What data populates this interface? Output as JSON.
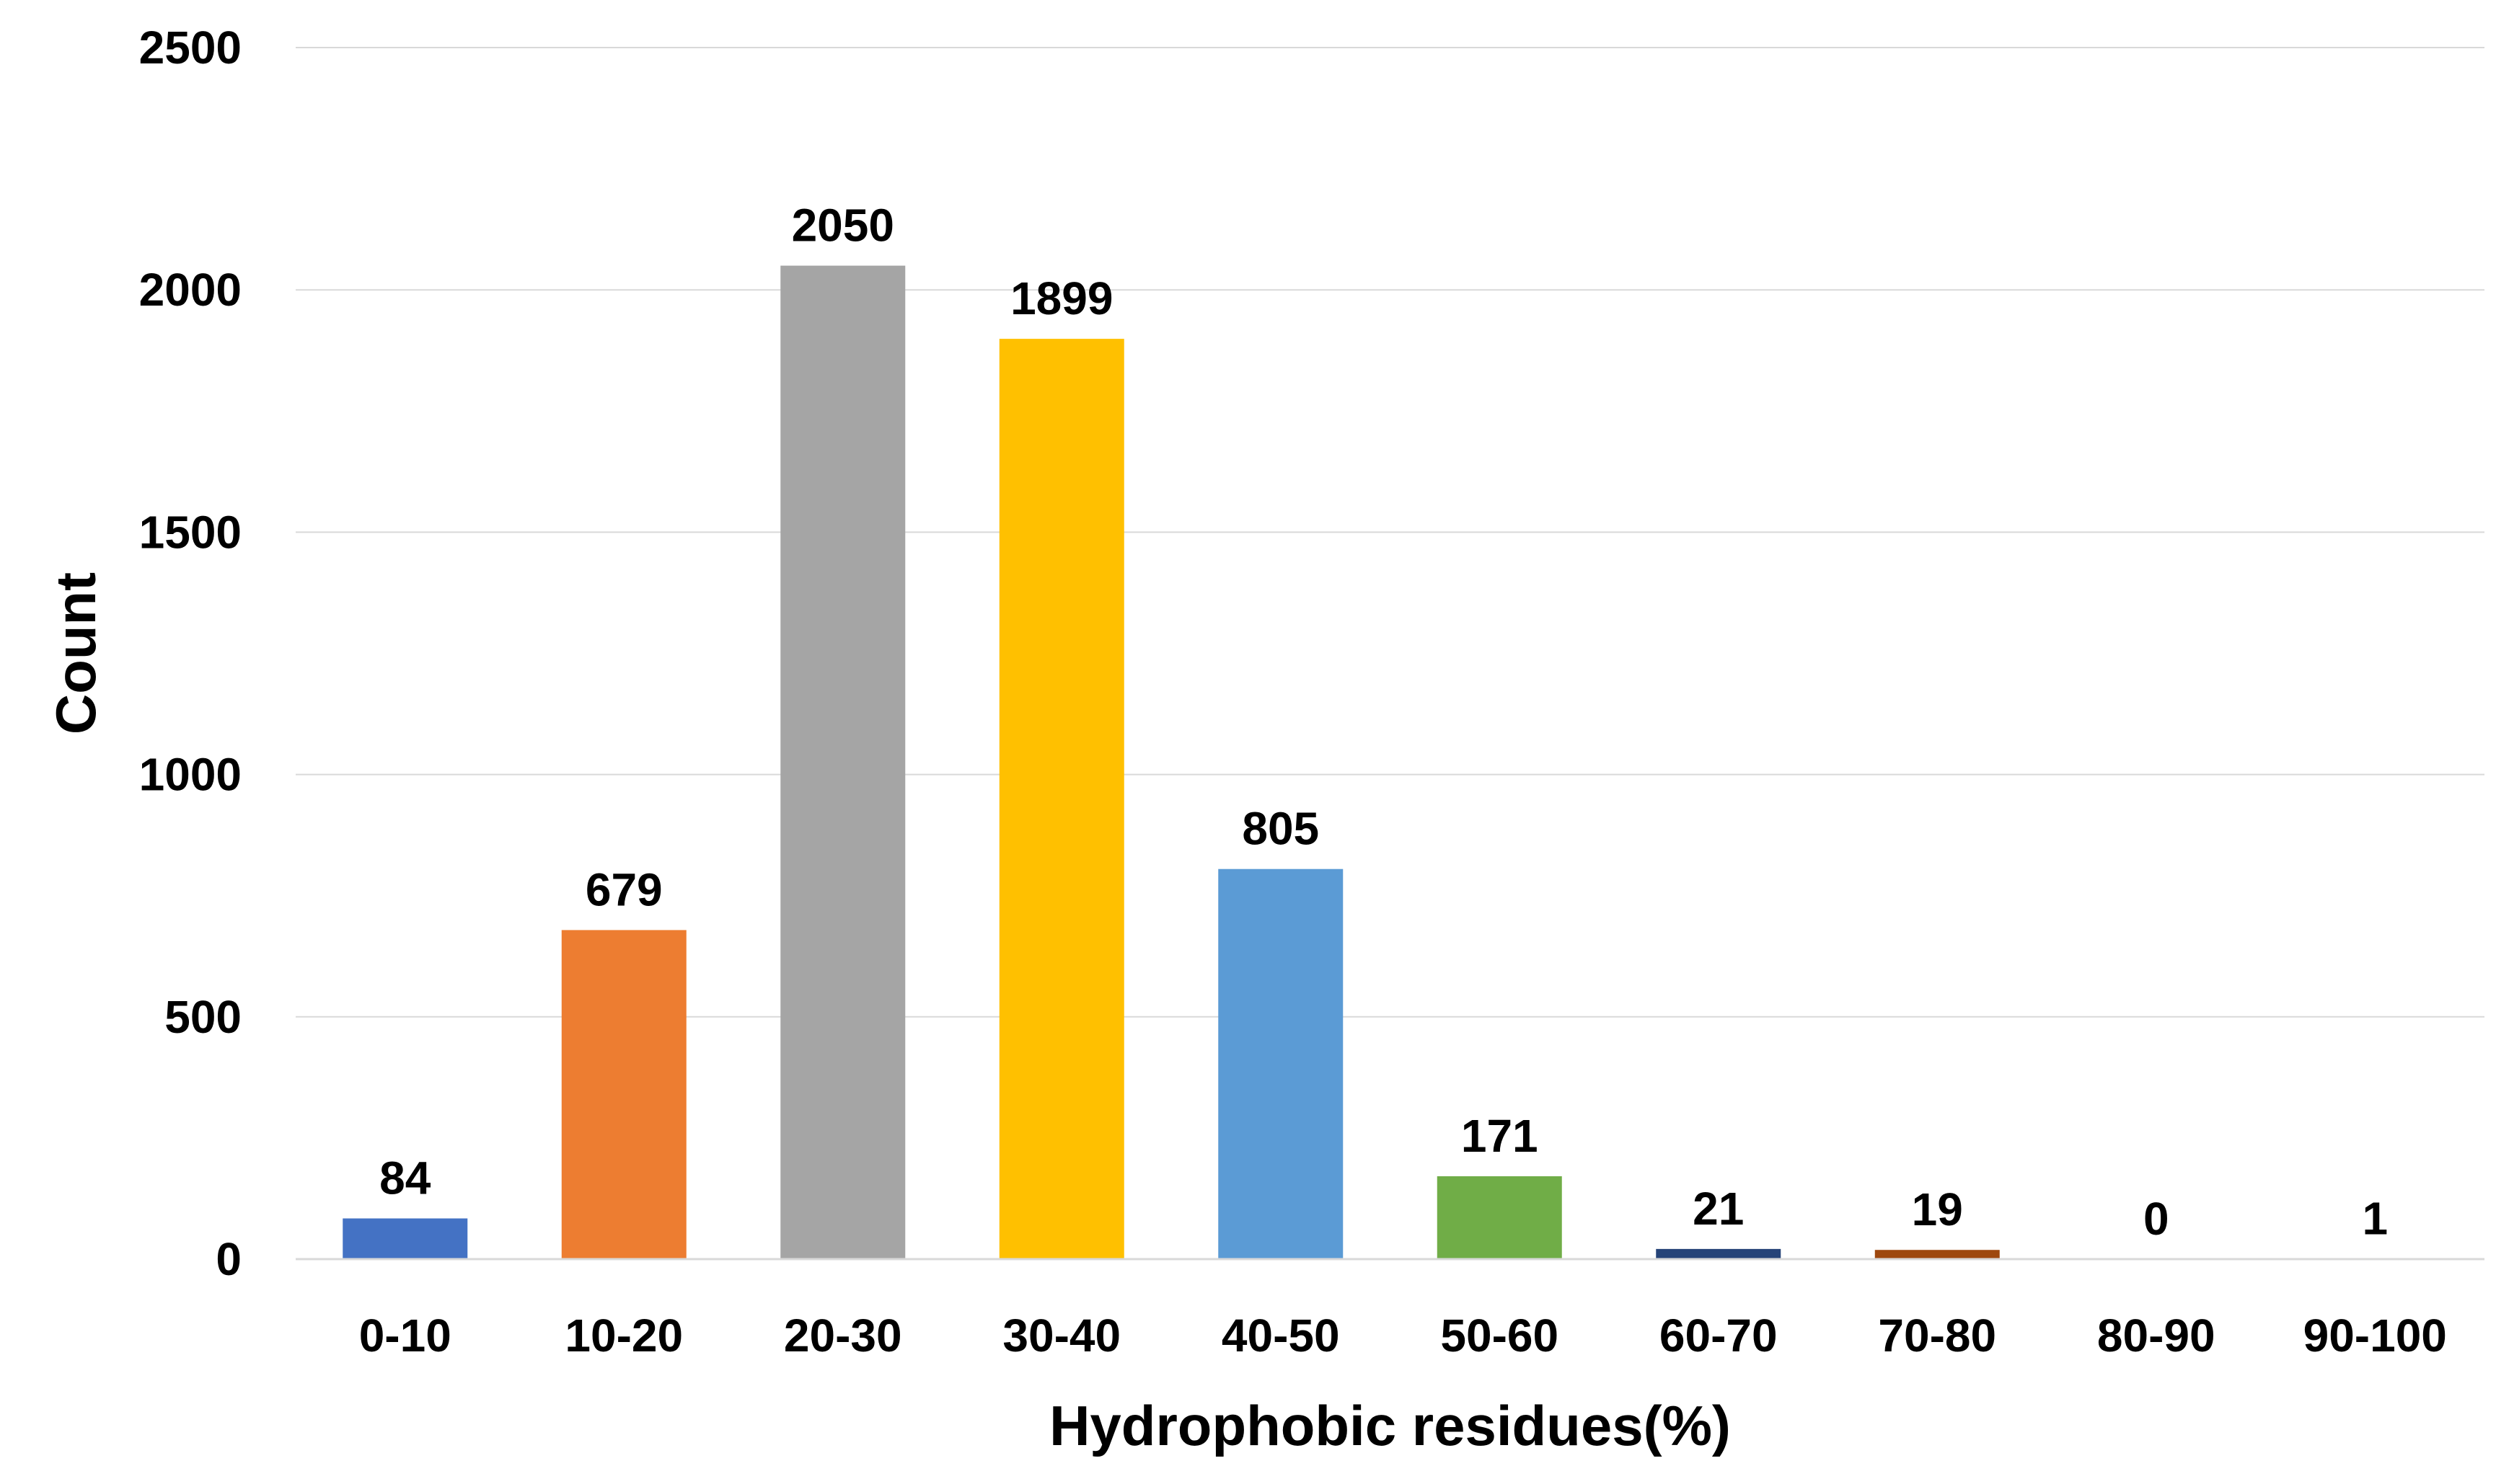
{
  "chart_data": {
    "type": "bar",
    "xlabel": "Hydrophobic residues(%)",
    "ylabel": "Count",
    "categories": [
      "0-10",
      "10-20",
      "20-30",
      "30-40",
      "40-50",
      "50-60",
      "60-70",
      "70-80",
      "80-90",
      "90-100"
    ],
    "values": [
      84,
      679,
      2050,
      1899,
      805,
      171,
      21,
      19,
      0,
      1
    ],
    "data_labels": [
      "84",
      "679",
      "2050",
      "1899",
      "805",
      "171",
      "21",
      "19",
      "0",
      "1"
    ],
    "colors": [
      "#4472C4",
      "#ED7D31",
      "#A5A5A5",
      "#FFC000",
      "#5B9BD5",
      "#70AD47",
      "#264478",
      "#9E480E",
      "#636363",
      "#997300"
    ],
    "ylim": [
      0,
      2500
    ],
    "yticks": [
      0,
      500,
      1000,
      1500,
      2000,
      2500
    ],
    "ytick_labels": [
      "0",
      "500",
      "1000",
      "1500",
      "2000",
      "2500"
    ],
    "grid": true,
    "legend": "none"
  }
}
